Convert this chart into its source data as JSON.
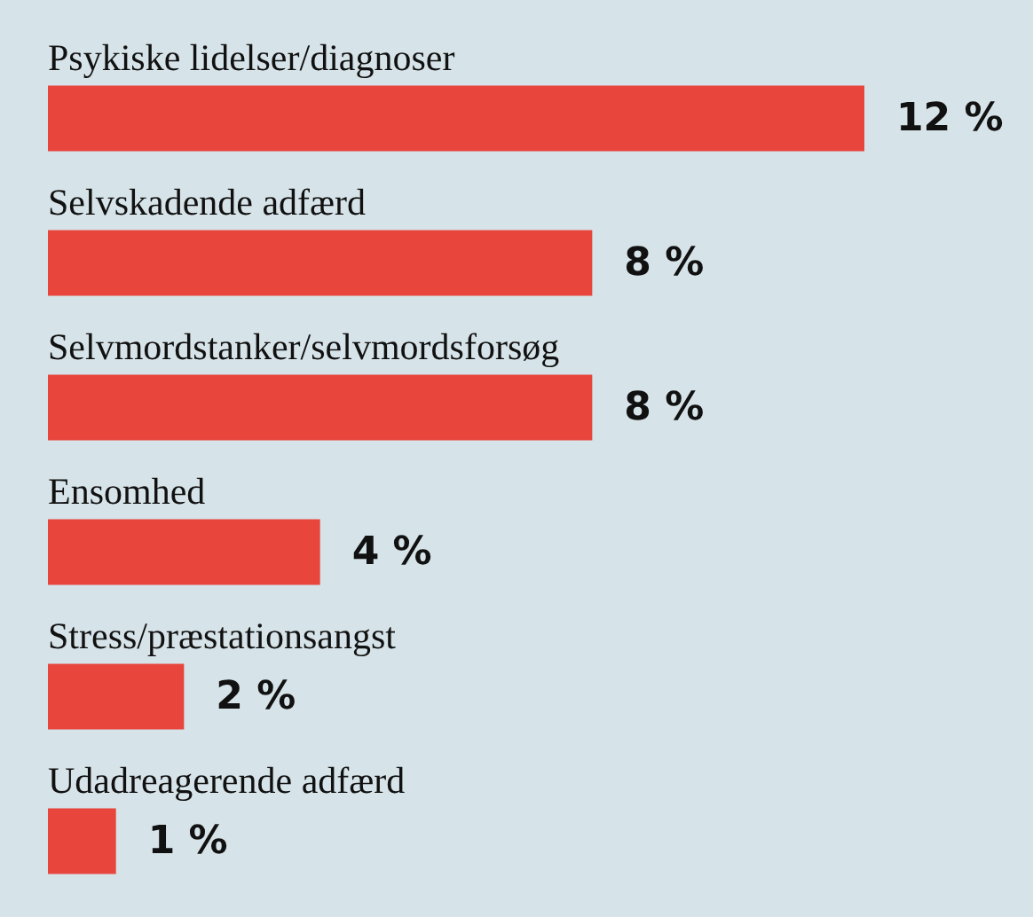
{
  "chart_data": {
    "type": "bar",
    "orientation": "horizontal",
    "categories": [
      "Psykiske lidelser/diagnoser",
      "Selvskadende adfærd",
      "Selvmordstanker/selvmordsforsøg",
      "Ensomhed",
      "Stress/præstationsangst",
      "Udadreagerende adfærd"
    ],
    "values": [
      12,
      8,
      8,
      4,
      2,
      1
    ],
    "value_labels": [
      "12 %",
      "8 %",
      "8 %",
      "4 %",
      "2 %",
      "1 %"
    ],
    "color": "#e8453c"
  }
}
